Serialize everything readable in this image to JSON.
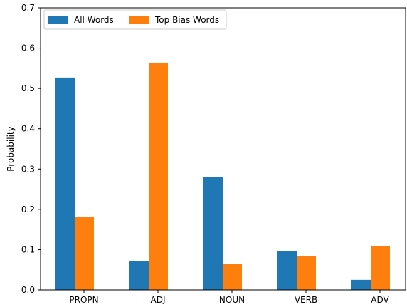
{
  "chart_data": {
    "type": "bar",
    "title": "",
    "xlabel": "",
    "ylabel": "Probability",
    "categories": [
      "PROPN",
      "ADJ",
      "NOUN",
      "VERB",
      "ADV"
    ],
    "series": [
      {
        "name": "All Words",
        "color": "#1f77b4",
        "values": [
          0.527,
          0.071,
          0.28,
          0.097,
          0.025
        ]
      },
      {
        "name": "Top Bias Words",
        "color": "#ff7f0e",
        "values": [
          0.181,
          0.564,
          0.064,
          0.084,
          0.108
        ]
      }
    ],
    "ylim": [
      0,
      0.7
    ],
    "yticks": [
      "0.0",
      "0.1",
      "0.2",
      "0.3",
      "0.4",
      "0.5",
      "0.6",
      "0.7"
    ],
    "legend": "top-left",
    "grid": false
  }
}
